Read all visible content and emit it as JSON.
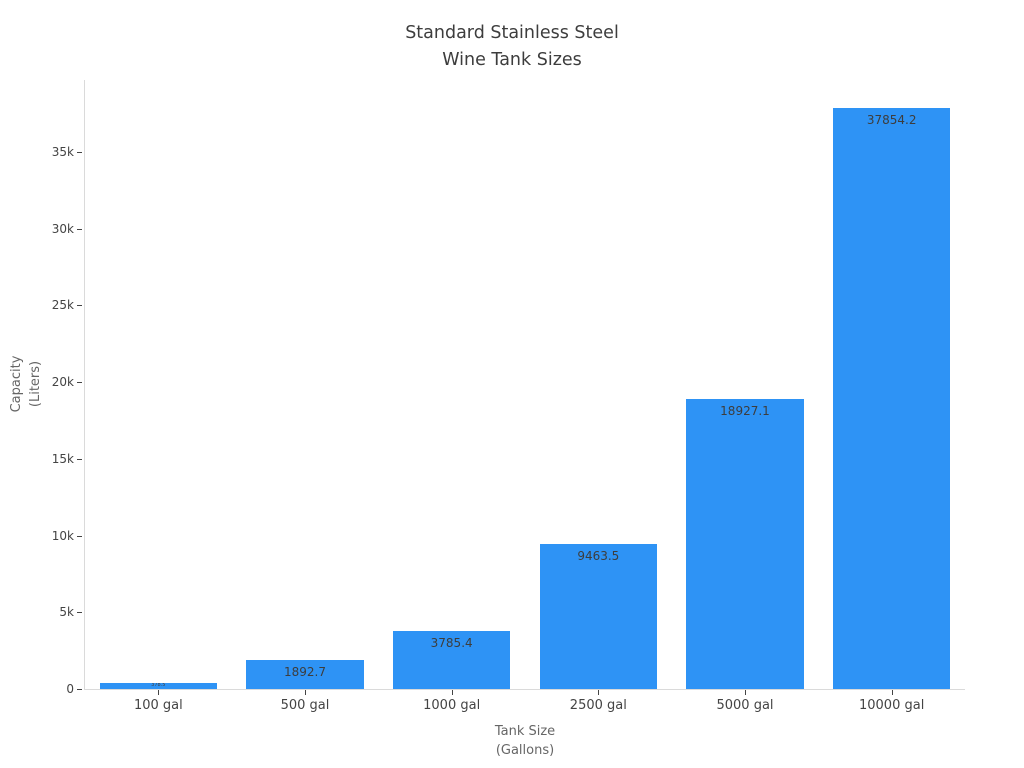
{
  "chart_data": {
    "type": "bar",
    "title_lines": [
      "Standard Stainless Steel",
      "Wine Tank Sizes"
    ],
    "xlabel_lines": [
      "Tank Size",
      "(Gallons)"
    ],
    "ylabel_lines": [
      "Capacity",
      "(Liters)"
    ],
    "categories": [
      "100 gal",
      "500 gal",
      "1000 gal",
      "2500 gal",
      "5000 gal",
      "10000 gal"
    ],
    "values": [
      378.5,
      1892.7,
      3785.4,
      9463.5,
      18927.1,
      37854.2
    ],
    "bar_labels": [
      "378.5",
      "1892.7",
      "3785.4",
      "9463.5",
      "18927.1",
      "37854.2"
    ],
    "yticks": [
      {
        "value": 0,
        "label": "0"
      },
      {
        "value": 5000,
        "label": "5k"
      },
      {
        "value": 10000,
        "label": "10k"
      },
      {
        "value": 15000,
        "label": "15k"
      },
      {
        "value": 20000,
        "label": "20k"
      },
      {
        "value": 25000,
        "label": "25k"
      },
      {
        "value": 30000,
        "label": "30k"
      },
      {
        "value": 35000,
        "label": "35k"
      }
    ],
    "ylim": [
      0,
      39700
    ],
    "bar_gap_fraction": 0.2,
    "grid": false,
    "legend": "none",
    "colors": {
      "bar": "#2E93F5",
      "axis_line": "#DADADA",
      "tick_mark": "#444444",
      "tick_label": "#444444",
      "axis_title": "#666666",
      "title": "#3D3D3D",
      "bar_label": "#3D3D3D",
      "background": "#FFFFFF"
    }
  }
}
